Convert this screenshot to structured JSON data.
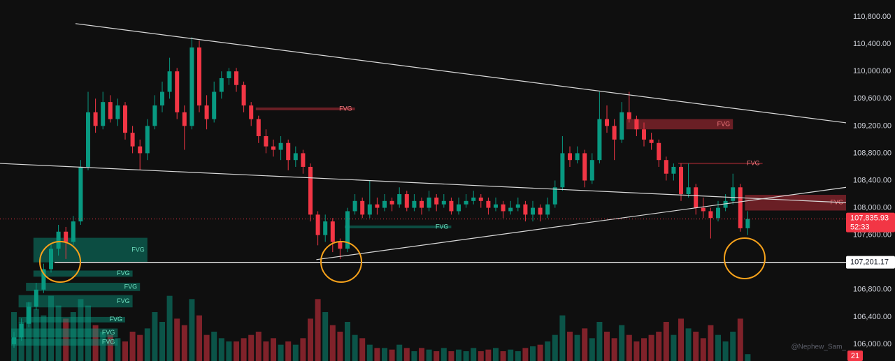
{
  "chart_data": {
    "type": "candlestick",
    "open": [
      106000,
      106100,
      106300,
      106550,
      106800,
      107100,
      107400,
      107650,
      107500,
      107800,
      108600,
      109400,
      109200,
      109550,
      109300,
      109500,
      109100,
      108900,
      108800,
      109200,
      109500,
      109700,
      110000,
      109400,
      109200,
      110350,
      109500,
      109300,
      109700,
      109900,
      110000,
      109800,
      109500,
      109300,
      109050,
      108900,
      108850,
      108950,
      108700,
      108800,
      108600,
      107900,
      107600,
      107800,
      107500,
      107400,
      107950,
      108100,
      107900,
      108050,
      108000,
      108100,
      108050,
      108200,
      108000,
      108100,
      108000,
      108150,
      108050,
      108100,
      107950,
      108050,
      108100,
      108150,
      108100,
      108000,
      108050,
      107950,
      108000,
      108050,
      107900,
      108000,
      107900,
      108050,
      108300,
      108800,
      108700,
      108800,
      108400,
      108700,
      109300,
      109200,
      109000,
      109400,
      109300,
      109150,
      109000,
      108950,
      108700,
      108500,
      108600,
      108200,
      108300,
      108000,
      107950,
      107850,
      108000,
      108100,
      108300,
      107700
    ],
    "high": [
      106180,
      106380,
      106620,
      106900,
      107180,
      107480,
      107750,
      107720,
      107880,
      108700,
      109700,
      109600,
      109700,
      109650,
      109600,
      109550,
      109200,
      109000,
      109300,
      109650,
      109850,
      110200,
      110050,
      109500,
      110500,
      110450,
      109650,
      109850,
      110000,
      110050,
      110050,
      109850,
      109550,
      109350,
      109150,
      109000,
      109050,
      109000,
      108900,
      108850,
      108650,
      107950,
      107900,
      107850,
      107550,
      108000,
      108200,
      108150,
      108400,
      108150,
      108200,
      108150,
      108300,
      108250,
      108200,
      108150,
      108250,
      108200,
      108200,
      108150,
      108150,
      108200,
      108250,
      108200,
      108150,
      108150,
      108100,
      108100,
      108150,
      108100,
      108100,
      108050,
      108150,
      108400,
      109050,
      108900,
      108900,
      108850,
      108800,
      109700,
      109500,
      109300,
      109550,
      109700,
      109350,
      109250,
      109100,
      109000,
      108750,
      108650,
      108650,
      108650,
      108350,
      108150,
      108000,
      108100,
      108200,
      108500,
      108350,
      107950
    ],
    "low": [
      105950,
      106050,
      106250,
      106500,
      106750,
      107050,
      107300,
      107250,
      107450,
      107750,
      108550,
      109100,
      109150,
      109250,
      109200,
      109000,
      108800,
      108550,
      108700,
      109150,
      109400,
      109600,
      109300,
      108850,
      109150,
      109400,
      109150,
      109250,
      109600,
      109800,
      109700,
      109400,
      109200,
      108950,
      108800,
      108750,
      108700,
      108550,
      108600,
      108500,
      107800,
      107450,
      107500,
      107350,
      107250,
      107350,
      107900,
      107850,
      107850,
      107900,
      107950,
      107950,
      108000,
      107950,
      107950,
      107900,
      107950,
      107950,
      108000,
      107900,
      107900,
      108000,
      108050,
      108000,
      107900,
      107950,
      107850,
      107900,
      107950,
      107800,
      107800,
      107800,
      107850,
      108000,
      108250,
      108600,
      108650,
      108300,
      108350,
      108650,
      109100,
      108700,
      108950,
      109250,
      109050,
      108900,
      108850,
      108600,
      108400,
      108400,
      108100,
      108150,
      107900,
      107850,
      107550,
      107800,
      107950,
      108050,
      107650,
      107600
    ],
    "close": [
      106100,
      106300,
      106550,
      106800,
      107100,
      107400,
      107650,
      107500,
      107800,
      108600,
      109400,
      109200,
      109550,
      109300,
      109500,
      109100,
      108900,
      108800,
      109200,
      109500,
      109700,
      110000,
      109400,
      109200,
      110350,
      109500,
      109300,
      109700,
      109900,
      110000,
      109800,
      109500,
      109300,
      109050,
      108900,
      108850,
      108950,
      108700,
      108800,
      108600,
      107900,
      107600,
      107800,
      107500,
      107400,
      107950,
      108100,
      107900,
      108050,
      108000,
      108100,
      108050,
      108200,
      108000,
      108100,
      108000,
      108150,
      108050,
      108100,
      107950,
      108050,
      108100,
      108150,
      108100,
      108000,
      108050,
      107950,
      108000,
      108050,
      107900,
      108000,
      107900,
      108050,
      108300,
      108800,
      108700,
      108800,
      108400,
      108700,
      109300,
      109200,
      109000,
      109400,
      109300,
      109150,
      109000,
      108950,
      108700,
      108500,
      108600,
      108200,
      108300,
      108000,
      107950,
      107850,
      108000,
      108100,
      108300,
      107700,
      107835.93
    ],
    "volume": [
      150,
      120,
      180,
      160,
      140,
      200,
      170,
      130,
      150,
      190,
      170,
      110,
      90,
      80,
      70,
      60,
      90,
      80,
      100,
      150,
      120,
      200,
      130,
      110,
      190,
      140,
      80,
      90,
      70,
      60,
      60,
      70,
      80,
      90,
      60,
      70,
      50,
      60,
      50,
      70,
      130,
      190,
      150,
      110,
      90,
      120,
      80,
      70,
      50,
      40,
      40,
      35,
      50,
      40,
      30,
      40,
      35,
      30,
      40,
      30,
      35,
      30,
      40,
      30,
      35,
      40,
      30,
      35,
      30,
      40,
      45,
      50,
      60,
      80,
      140,
      90,
      80,
      100,
      70,
      120,
      90,
      70,
      110,
      80,
      60,
      70,
      80,
      90,
      120,
      80,
      130,
      100,
      90,
      70,
      110,
      80,
      60,
      90,
      130,
      21
    ],
    "volume_lim": [
      0,
      300
    ],
    "up_color": "#089981",
    "down_color": "#f23645",
    "ylim": [
      105754,
      111046
    ],
    "yticks": [
      {
        "value": 106000,
        "label": "106,000.00"
      },
      {
        "value": 106400,
        "label": "106,400.00"
      },
      {
        "value": 106800,
        "label": "106,800.00"
      },
      {
        "value": 107200,
        "label": "107,200.00"
      },
      {
        "value": 107600,
        "label": "107,600.00"
      },
      {
        "value": 108000,
        "label": "108,000.00"
      },
      {
        "value": 108400,
        "label": "108,400.00"
      },
      {
        "value": 108800,
        "label": "108,800.00"
      },
      {
        "value": 109200,
        "label": "109,200.00"
      },
      {
        "value": 109600,
        "label": "109,600.00"
      },
      {
        "value": 110000,
        "label": "110,000.00"
      },
      {
        "value": 110400,
        "label": "110,400.00"
      },
      {
        "value": 110800,
        "label": "110,800.00"
      }
    ],
    "fvg": [
      {
        "label": "FVG",
        "kind": "bull",
        "top": 107560,
        "bottom": 107200,
        "from": 3,
        "to": 18
      },
      {
        "label": "FVG",
        "kind": "bull",
        "top": 107080,
        "bottom": 106990,
        "from": 3,
        "to": 16
      },
      {
        "label": "FVG",
        "kind": "bull",
        "top": 106900,
        "bottom": 106780,
        "from": 2,
        "to": 17
      },
      {
        "label": "FVG",
        "kind": "bull",
        "top": 106720,
        "bottom": 106540,
        "from": 1,
        "to": 16
      },
      {
        "label": "FVG",
        "kind": "bull",
        "top": 106400,
        "bottom": 106320,
        "from": 1,
        "to": 15
      },
      {
        "label": "FVG",
        "kind": "bull",
        "top": 106230,
        "bottom": 106100,
        "from": 0,
        "to": 14
      },
      {
        "label": "FVG",
        "kind": "bull",
        "top": 106080,
        "bottom": 105980,
        "from": 0,
        "to": 14
      },
      {
        "label": "FVG",
        "kind": "bull",
        "top": 107740,
        "bottom": 107700,
        "from": 45,
        "to": 59
      },
      {
        "label": "FVG",
        "kind": "bear",
        "top": 109470,
        "bottom": 109430,
        "from": 33,
        "to": 46
      },
      {
        "label": "FVG",
        "kind": "bear",
        "top": 109300,
        "bottom": 109150,
        "from": 83,
        "to": 97
      },
      {
        "label": "FVG",
        "kind": "bear",
        "top": 108660,
        "bottom": 108640,
        "from": 90,
        "to": 101
      },
      {
        "label": "FVG",
        "kind": "bear",
        "top": 108190,
        "bottom": 107960,
        "from": 99,
        "to": 112.3
      }
    ],
    "trendlines": [
      {
        "x": [
          8.3,
          112.3
        ],
        "y": [
          110700,
          109245
        ]
      },
      {
        "x": [
          -1.9,
          112.3
        ],
        "y": [
          108650,
          108075
        ]
      },
      {
        "x": [
          40.8,
          112.3
        ],
        "y": [
          107240,
          108300
        ]
      }
    ],
    "level": {
      "value": 107201.17,
      "label": "107,201.17"
    },
    "last_price": {
      "value": 107835.93,
      "label": "107,835.93"
    },
    "countdown": "52:33",
    "watermark": "@Nephew_Sam_"
  }
}
